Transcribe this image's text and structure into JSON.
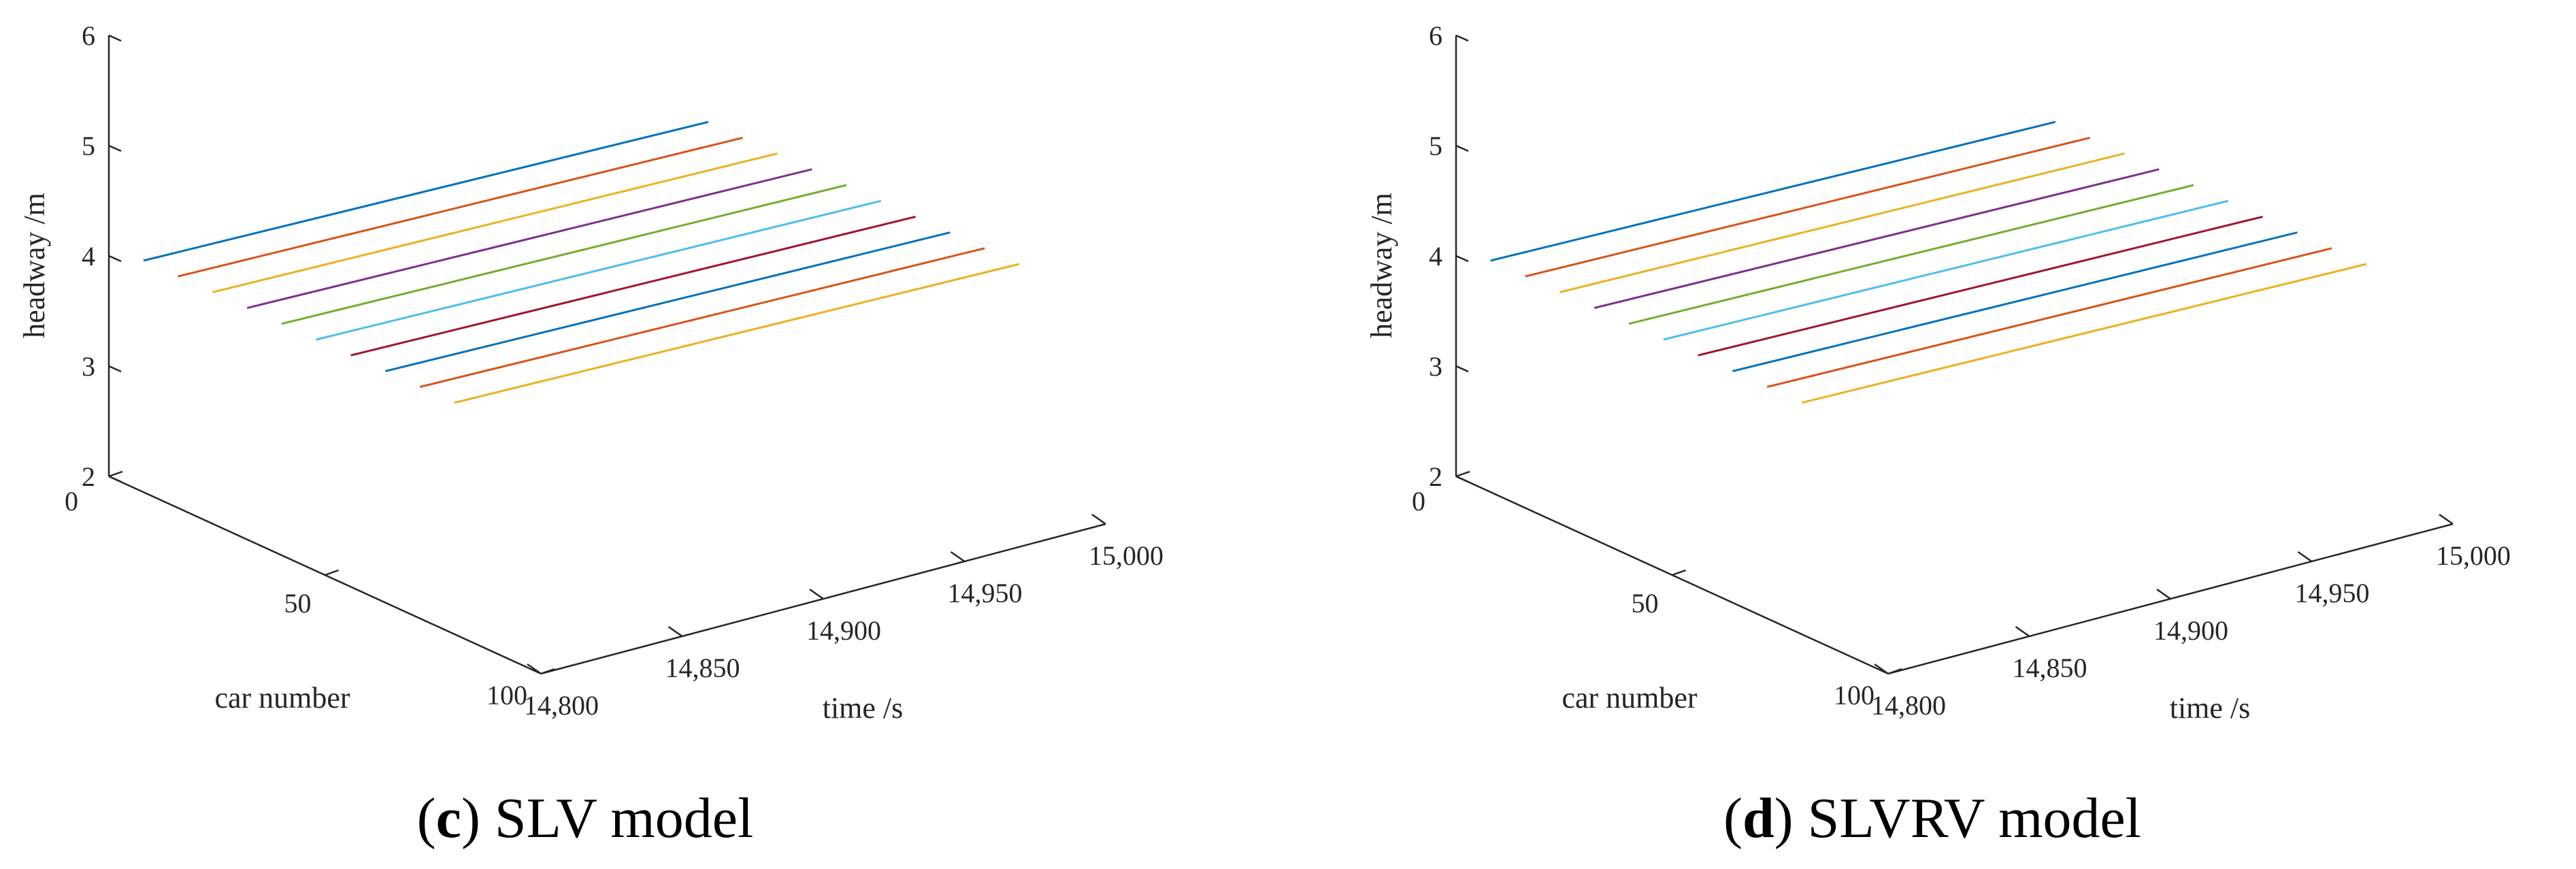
{
  "chart_data": [
    {
      "type": "line",
      "projection": "3d",
      "caption_letter": "c",
      "caption_open": "(",
      "caption_close": ")",
      "caption_text": " SLV model",
      "xlabel": "time /s",
      "ylabel": "car number",
      "zlabel": "headway /m",
      "xlim": [
        14800,
        15000
      ],
      "ylim": [
        0,
        100
      ],
      "zlim": [
        2,
        6
      ],
      "xticks": [
        14800,
        14850,
        14900,
        14950,
        15000
      ],
      "xtick_labels": [
        "14,800",
        "14,850",
        "14,900",
        "14,950",
        "15,000"
      ],
      "yticks": [
        0,
        50,
        100
      ],
      "ytick_labels": [
        "0",
        "50",
        "100"
      ],
      "zticks": [
        2,
        3,
        4,
        5,
        6
      ],
      "ztick_labels": [
        "2",
        "3",
        "4",
        "5",
        "6"
      ],
      "series": [
        {
          "car": 8,
          "color": "#0072BD",
          "z_start": 4.1,
          "z_end": 4.0
        },
        {
          "car": 16,
          "color": "#D95319",
          "z_start": 4.1,
          "z_end": 4.0
        },
        {
          "car": 24,
          "color": "#EDB120",
          "z_start": 4.1,
          "z_end": 4.0
        },
        {
          "car": 32,
          "color": "#7E2F8E",
          "z_start": 4.1,
          "z_end": 4.0
        },
        {
          "car": 40,
          "color": "#77AC30",
          "z_start": 4.1,
          "z_end": 4.0
        },
        {
          "car": 48,
          "color": "#4DBEEE",
          "z_start": 4.1,
          "z_end": 4.0
        },
        {
          "car": 56,
          "color": "#A2142F",
          "z_start": 4.1,
          "z_end": 4.0
        },
        {
          "car": 64,
          "color": "#0072BD",
          "z_start": 4.1,
          "z_end": 4.0
        },
        {
          "car": 72,
          "color": "#D95319",
          "z_start": 4.1,
          "z_end": 4.0
        },
        {
          "car": 80,
          "color": "#EDB120",
          "z_start": 4.1,
          "z_end": 4.0
        }
      ]
    },
    {
      "type": "line",
      "projection": "3d",
      "caption_letter": "d",
      "caption_open": "(",
      "caption_close": ")",
      "caption_text": " SLVRV model",
      "xlabel": "time /s",
      "ylabel": "car number",
      "zlabel": "headway /m",
      "xlim": [
        14800,
        15000
      ],
      "ylim": [
        0,
        100
      ],
      "zlim": [
        2,
        6
      ],
      "xticks": [
        14800,
        14850,
        14900,
        14950,
        15000
      ],
      "xtick_labels": [
        "14,800",
        "14,850",
        "14,900",
        "14,950",
        "15,000"
      ],
      "yticks": [
        0,
        50,
        100
      ],
      "ytick_labels": [
        "0",
        "50",
        "100"
      ],
      "zticks": [
        2,
        3,
        4,
        5,
        6
      ],
      "ztick_labels": [
        "2",
        "3",
        "4",
        "5",
        "6"
      ],
      "series": [
        {
          "car": 8,
          "color": "#0072BD",
          "z_start": 4.1,
          "z_end": 4.0
        },
        {
          "car": 16,
          "color": "#D95319",
          "z_start": 4.1,
          "z_end": 4.0
        },
        {
          "car": 24,
          "color": "#EDB120",
          "z_start": 4.1,
          "z_end": 4.0
        },
        {
          "car": 32,
          "color": "#7E2F8E",
          "z_start": 4.1,
          "z_end": 4.0
        },
        {
          "car": 40,
          "color": "#77AC30",
          "z_start": 4.1,
          "z_end": 4.0
        },
        {
          "car": 48,
          "color": "#4DBEEE",
          "z_start": 4.1,
          "z_end": 4.0
        },
        {
          "car": 56,
          "color": "#A2142F",
          "z_start": 4.1,
          "z_end": 4.0
        },
        {
          "car": 64,
          "color": "#0072BD",
          "z_start": 4.1,
          "z_end": 4.0
        },
        {
          "car": 72,
          "color": "#D95319",
          "z_start": 4.1,
          "z_end": 4.0
        },
        {
          "car": 80,
          "color": "#EDB120",
          "z_start": 4.1,
          "z_end": 4.0
        }
      ]
    }
  ]
}
